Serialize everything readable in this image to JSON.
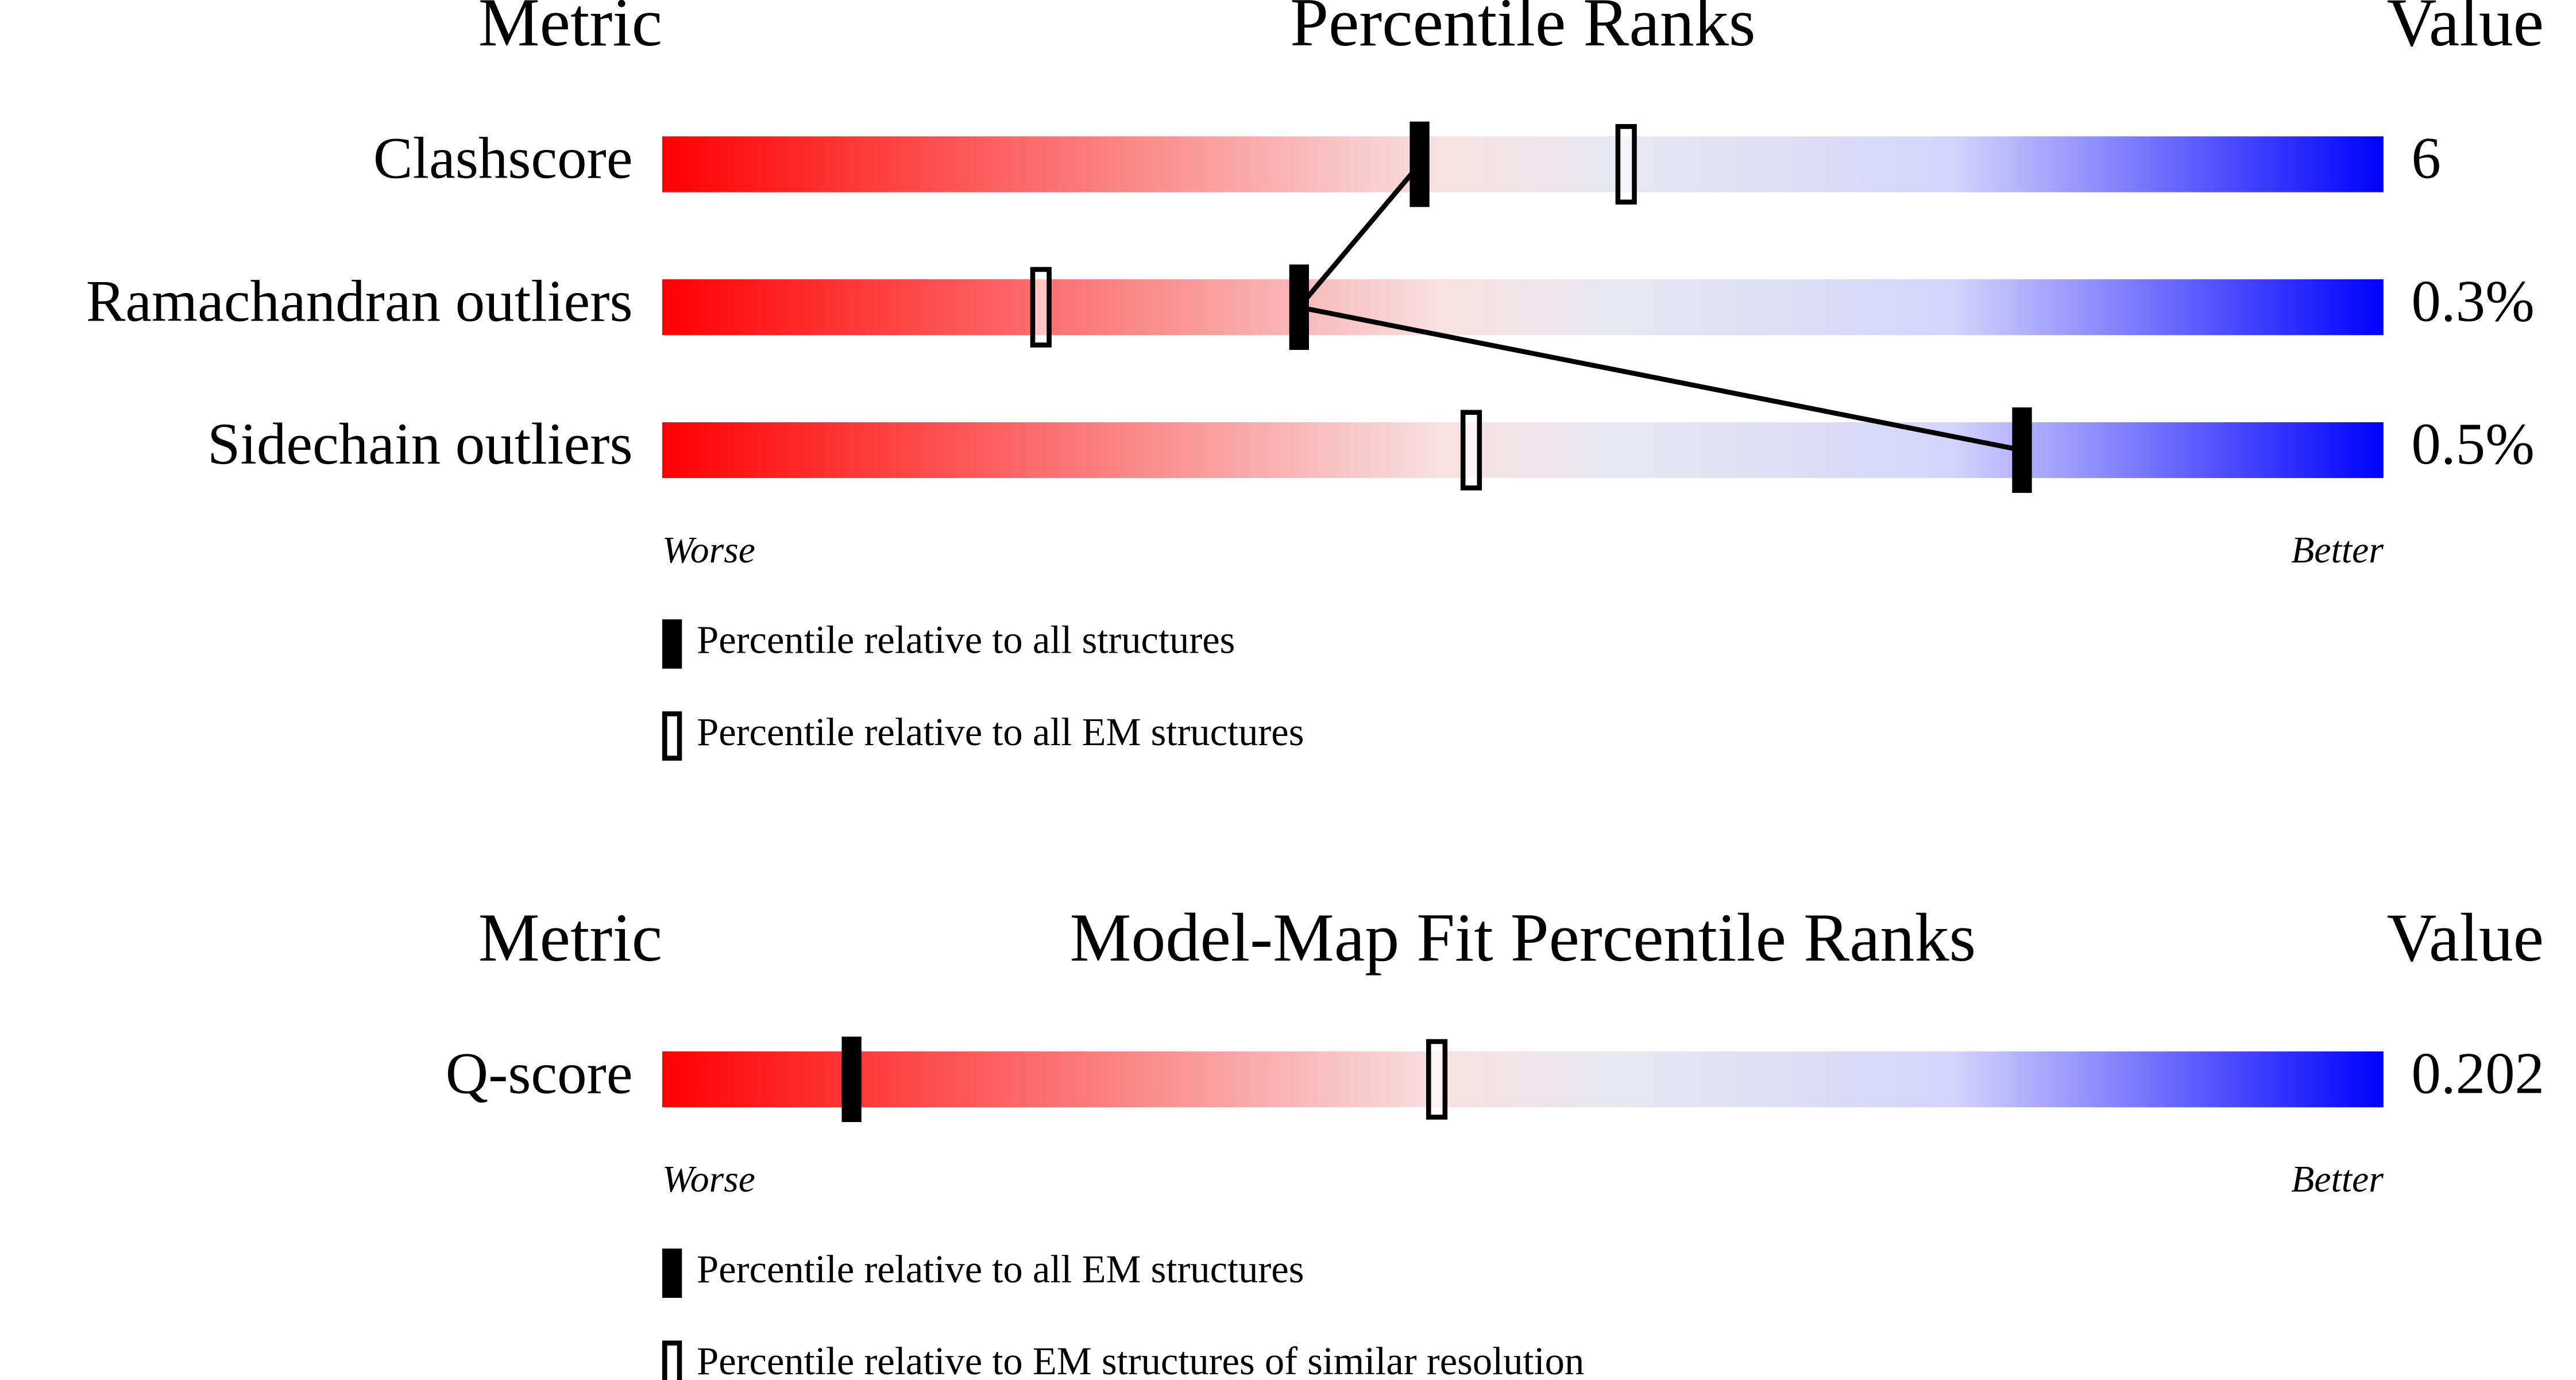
{
  "chart_data": [
    {
      "type": "percentile",
      "headers": {
        "metric": "Metric",
        "title": "Percentile Ranks",
        "value": "Value"
      },
      "categories": [
        "Clashscore",
        "Ramachandran outliers",
        "Sidechain outliers"
      ],
      "series": [
        {
          "name": "Percentile relative to all structures",
          "color": "#000000",
          "values": [
            44,
            37,
            79
          ]
        },
        {
          "name": "Percentile relative to all EM structures",
          "color": "#ffffff",
          "values": [
            56,
            22,
            47
          ]
        }
      ],
      "values": [
        6,
        0.3,
        0.5
      ],
      "value_labels": [
        "6",
        "0.3%",
        "0.5%"
      ],
      "xlim": [
        0,
        100
      ],
      "axis_labels": {
        "low": "Worse",
        "high": "Better"
      }
    },
    {
      "type": "percentile",
      "headers": {
        "metric": "Metric",
        "title": "Model-Map Fit Percentile Ranks",
        "value": "Value"
      },
      "categories": [
        "Q-score"
      ],
      "series": [
        {
          "name": "Percentile relative to all EM structures",
          "color": "#000000",
          "values": [
            11
          ]
        },
        {
          "name": "Percentile relative to EM structures of similar resolution",
          "color": "#ffffff",
          "values": [
            45
          ]
        }
      ],
      "values": [
        0.202
      ],
      "xlim": [
        0,
        100
      ],
      "axis_labels": {
        "low": "Worse",
        "high": "Better"
      }
    }
  ]
}
